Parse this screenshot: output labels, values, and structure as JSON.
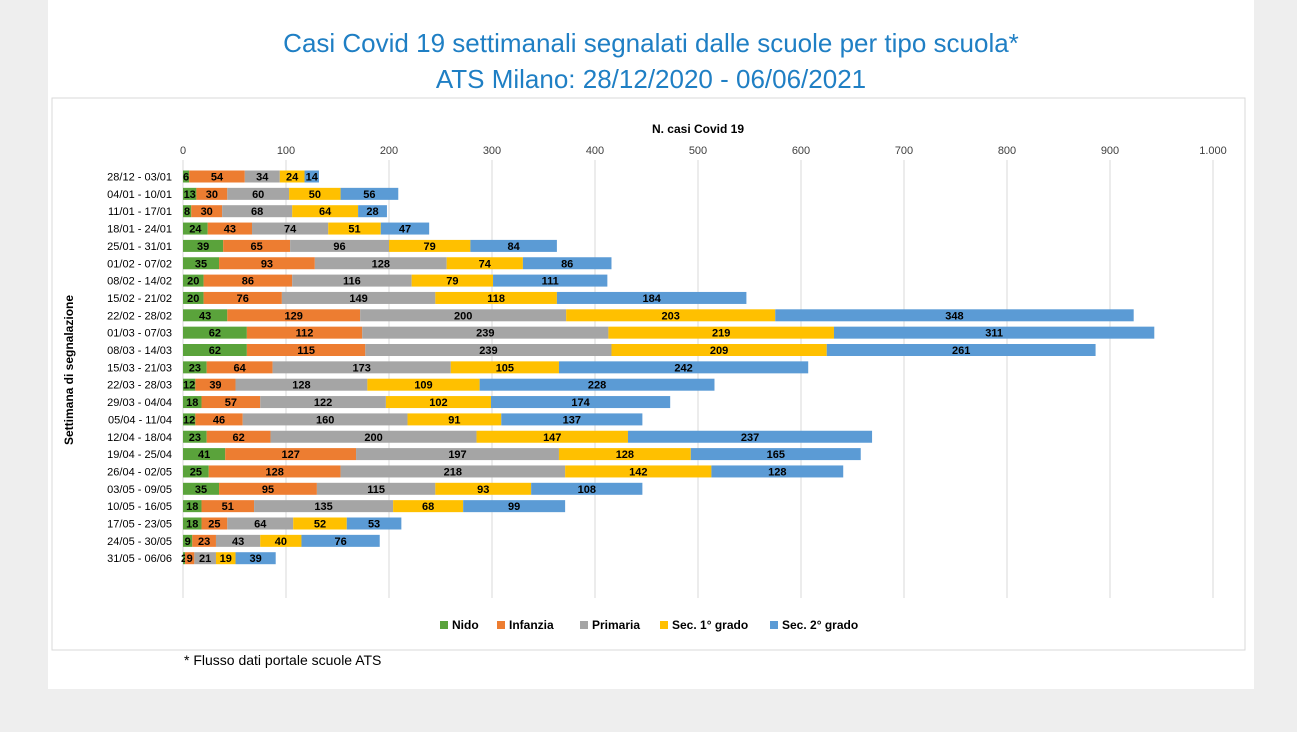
{
  "title": {
    "line1": "Casi Covid 19 settimanali segnalati dalle scuole per tipo scuola*",
    "line2": "ATS Milano: 28/12/2020 - 06/06/2021"
  },
  "footnote": "* Flusso dati portale scuole ATS",
  "colors": {
    "Nido": "#5aa33b",
    "Infanzia": "#ed7d31",
    "Primaria": "#a5a5a5",
    "Sec. 1° grado": "#ffc000",
    "Sec. 2° grado": "#5b9bd5"
  },
  "chart_data": {
    "type": "bar",
    "orientation": "horizontal",
    "stacked": true,
    "xlabel": "N. casi Covid 19",
    "ylabel": "Settimana di segnalazione",
    "xlim": [
      0,
      1000
    ],
    "x_ticks": [
      "0",
      "100",
      "200",
      "300",
      "400",
      "500",
      "600",
      "700",
      "800",
      "900",
      "1.000"
    ],
    "grid": "vertical",
    "legend": "bottom",
    "categories": [
      "28/12 - 03/01",
      "04/01 - 10/01",
      "11/01 - 17/01",
      "18/01 - 24/01",
      "25/01 - 31/01",
      "01/02 - 07/02",
      "08/02 - 14/02",
      "15/02 - 21/02",
      "22/02 - 28/02",
      "01/03 - 07/03",
      "08/03 - 14/03",
      "15/03 - 21/03",
      "22/03 - 28/03",
      "29/03 - 04/04",
      "05/04 - 11/04",
      "12/04 - 18/04",
      "19/04 - 25/04",
      "26/04 - 02/05",
      "03/05 - 09/05",
      "10/05 - 16/05",
      "17/05 - 23/05",
      "24/05 - 30/05",
      "31/05 - 06/06"
    ],
    "series": [
      {
        "name": "Nido",
        "values": [
          6,
          13,
          8,
          24,
          39,
          35,
          20,
          20,
          43,
          62,
          62,
          23,
          12,
          18,
          12,
          23,
          41,
          25,
          35,
          18,
          18,
          9,
          2
        ]
      },
      {
        "name": "Infanzia",
        "values": [
          54,
          30,
          30,
          43,
          65,
          93,
          86,
          76,
          129,
          112,
          115,
          64,
          39,
          57,
          46,
          62,
          127,
          128,
          95,
          51,
          25,
          23,
          9
        ]
      },
      {
        "name": "Primaria",
        "values": [
          34,
          60,
          68,
          74,
          96,
          128,
          116,
          149,
          200,
          239,
          239,
          173,
          128,
          122,
          160,
          200,
          197,
          218,
          115,
          135,
          64,
          43,
          21
        ]
      },
      {
        "name": "Sec. 1° grado",
        "values": [
          24,
          50,
          64,
          51,
          79,
          74,
          79,
          118,
          203,
          219,
          209,
          105,
          109,
          102,
          91,
          147,
          128,
          142,
          93,
          68,
          52,
          40,
          19
        ]
      },
      {
        "name": "Sec. 2° grado",
        "values": [
          14,
          56,
          28,
          47,
          84,
          86,
          111,
          184,
          348,
          311,
          261,
          242,
          228,
          174,
          137,
          237,
          165,
          128,
          108,
          99,
          53,
          76,
          39
        ]
      }
    ]
  }
}
